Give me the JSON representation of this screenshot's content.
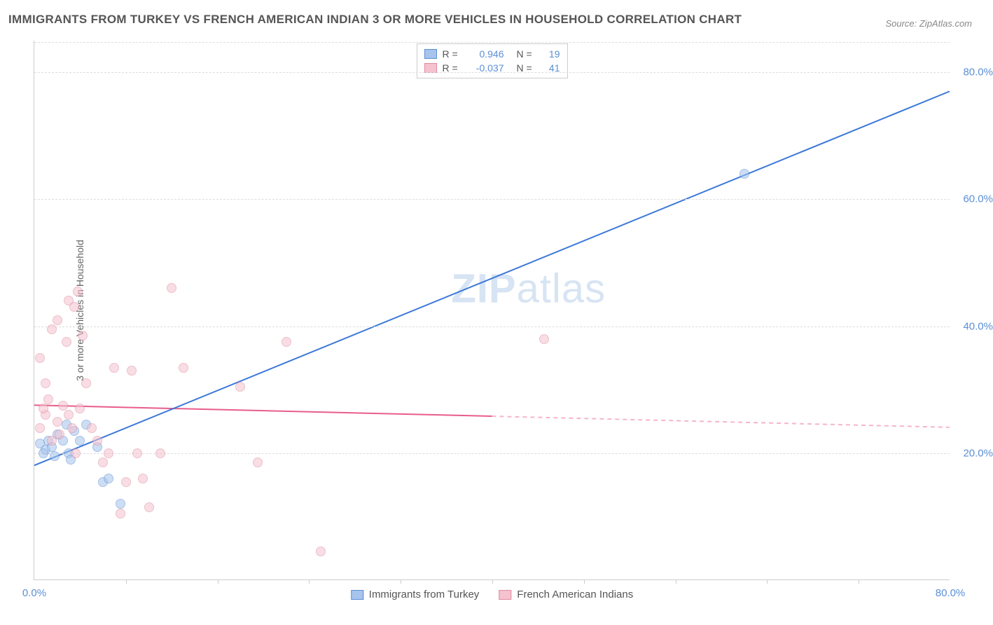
{
  "title": "IMMIGRANTS FROM TURKEY VS FRENCH AMERICAN INDIAN 3 OR MORE VEHICLES IN HOUSEHOLD CORRELATION CHART",
  "source": "Source: ZipAtlas.com",
  "watermark": "ZIPatlas",
  "y_axis_title": "3 or more Vehicles in Household",
  "chart": {
    "type": "scatter",
    "xlim": [
      0,
      80
    ],
    "ylim": [
      0,
      85
    ],
    "x_ticks": [
      0,
      80
    ],
    "x_tick_labels": [
      "0.0%",
      "80.0%"
    ],
    "x_minor_ticks": [
      8,
      16,
      24,
      32,
      40,
      48,
      56,
      64,
      72
    ],
    "y_ticks": [
      20,
      40,
      60,
      80
    ],
    "y_tick_labels": [
      "20.0%",
      "40.0%",
      "60.0%",
      "80.0%"
    ],
    "background_color": "#ffffff",
    "grid_color": "#dddddd",
    "axis_color": "#cccccc",
    "tick_label_color": "#5b8fd6",
    "marker_radius": 7,
    "marker_opacity": 0.55,
    "series": [
      {
        "name": "Immigrants from Turkey",
        "fill_color": "#a6c4ec",
        "stroke_color": "#5b8fd6",
        "R": "0.946",
        "N": "19",
        "trend": {
          "x1": 0,
          "y1": 18,
          "x2": 80,
          "y2": 77,
          "color": "#3b78d8",
          "width": 2,
          "dash": null,
          "dash_from_x": null
        },
        "points": [
          [
            0.5,
            21.5
          ],
          [
            1.0,
            20.5
          ],
          [
            1.2,
            22.0
          ],
          [
            1.5,
            21.0
          ],
          [
            0.8,
            20.0
          ],
          [
            2.0,
            23.0
          ],
          [
            2.5,
            22.0
          ],
          [
            2.8,
            24.5
          ],
          [
            3.5,
            23.5
          ],
          [
            3.0,
            20.0
          ],
          [
            4.5,
            24.5
          ],
          [
            4.0,
            22.0
          ],
          [
            5.5,
            21.0
          ],
          [
            6.0,
            15.5
          ],
          [
            6.5,
            16.0
          ],
          [
            7.5,
            12.0
          ],
          [
            3.2,
            19.0
          ],
          [
            1.8,
            19.5
          ],
          [
            62.0,
            64.0
          ]
        ]
      },
      {
        "name": "French American Indians",
        "fill_color": "#f5c2cf",
        "stroke_color": "#e08ba2",
        "R": "-0.037",
        "N": "41",
        "trend": {
          "x1": 0,
          "y1": 27.5,
          "x2": 80,
          "y2": 24.0,
          "color": "#e85d8a",
          "width": 2,
          "dash": "6,5",
          "dash_from_x": 40
        },
        "points": [
          [
            0.5,
            24.0
          ],
          [
            1.0,
            26.0
          ],
          [
            1.5,
            22.0
          ],
          [
            0.8,
            27.0
          ],
          [
            1.2,
            28.5
          ],
          [
            2.0,
            25.0
          ],
          [
            2.2,
            23.0
          ],
          [
            2.5,
            27.5
          ],
          [
            3.0,
            26.0
          ],
          [
            3.3,
            24.0
          ],
          [
            3.6,
            20.0
          ],
          [
            4.0,
            27.0
          ],
          [
            4.5,
            31.0
          ],
          [
            5.0,
            24.0
          ],
          [
            5.5,
            22.0
          ],
          [
            6.0,
            18.5
          ],
          [
            6.5,
            20.0
          ],
          [
            7.0,
            33.5
          ],
          [
            7.5,
            10.5
          ],
          [
            8.0,
            15.5
          ],
          [
            8.5,
            33.0
          ],
          [
            9.0,
            20.0
          ],
          [
            9.5,
            16.0
          ],
          [
            10.0,
            11.5
          ],
          [
            0.5,
            35.0
          ],
          [
            1.5,
            39.5
          ],
          [
            2.0,
            41.0
          ],
          [
            3.0,
            44.0
          ],
          [
            3.5,
            43.0
          ],
          [
            3.8,
            45.5
          ],
          [
            11.0,
            20.0
          ],
          [
            12.0,
            46.0
          ],
          [
            13.0,
            33.5
          ],
          [
            18.0,
            30.5
          ],
          [
            22.0,
            37.5
          ],
          [
            19.5,
            18.5
          ],
          [
            25.0,
            4.5
          ],
          [
            44.5,
            38.0
          ],
          [
            2.8,
            37.5
          ],
          [
            1.0,
            31.0
          ],
          [
            4.2,
            38.5
          ]
        ]
      }
    ]
  },
  "legend_top_labels": {
    "R": "R =",
    "N": "N ="
  },
  "legend_bottom": [
    {
      "label": "Immigrants from Turkey",
      "fill": "#a6c4ec",
      "stroke": "#5b8fd6"
    },
    {
      "label": "French American Indians",
      "fill": "#f5c2cf",
      "stroke": "#e08ba2"
    }
  ]
}
